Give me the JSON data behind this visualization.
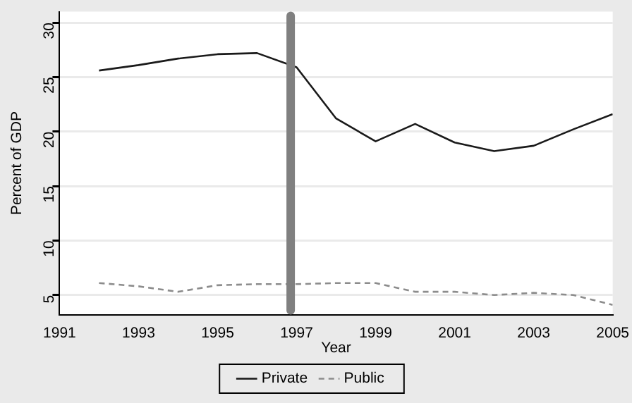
{
  "chart_data": {
    "type": "line",
    "xlabel": "Year",
    "ylabel": "Percent of GDP",
    "x": [
      1992,
      1993,
      1994,
      1995,
      1996,
      1997,
      1998,
      1999,
      2000,
      2001,
      2002,
      2003,
      2004,
      2005
    ],
    "series": [
      {
        "name": "Private",
        "color": "#1a1a1a",
        "line_style": "solid",
        "values": [
          25.6,
          26.1,
          26.7,
          27.1,
          27.2,
          25.9,
          21.2,
          19.1,
          20.7,
          19.0,
          18.2,
          18.7,
          20.2,
          21.6
        ]
      },
      {
        "name": "Public",
        "color": "#8c8c8c",
        "line_style": "dashed",
        "values": [
          6.1,
          5.8,
          5.3,
          5.9,
          6.0,
          6.0,
          6.1,
          6.1,
          5.3,
          5.3,
          5.0,
          5.2,
          5.0,
          4.1
        ]
      }
    ],
    "xlim": [
      1991,
      2005
    ],
    "xticks": [
      1991,
      1993,
      1995,
      1997,
      1999,
      2001,
      2003,
      2005
    ],
    "ylim": [
      3.2,
      31
    ],
    "yticks": [
      5,
      10,
      15,
      20,
      25,
      30
    ],
    "ref_lines": [
      {
        "axis": "x",
        "value": 1996.85,
        "color": "#808080"
      }
    ],
    "grid": "y",
    "legend": "bottom",
    "marker": "none"
  }
}
